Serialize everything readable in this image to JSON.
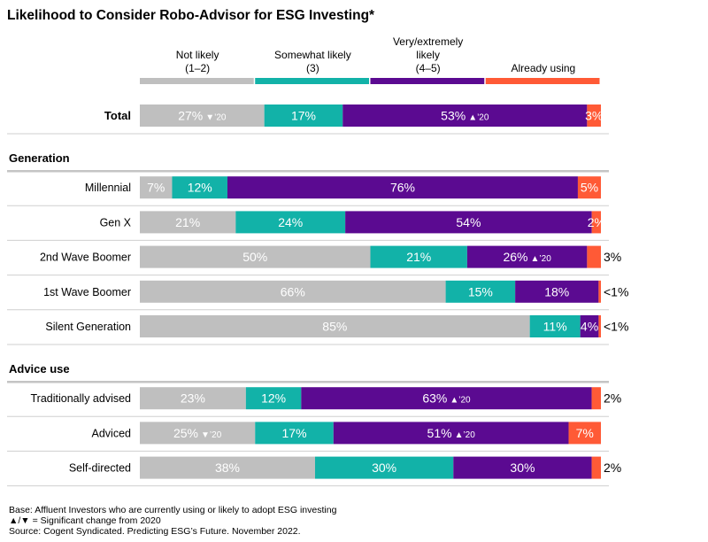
{
  "chart_data": {
    "type": "bar",
    "subtype": "stacked-horizontal-100",
    "title": "Likelihood to Consider Robo-Advisor for ESG Investing*",
    "series": [
      {
        "name": "Not likely\n(1–2)",
        "color": "#BFBFBF"
      },
      {
        "name": "Somewhat likely\n(3)",
        "color": "#12B2A8"
      },
      {
        "name": "Very/extremely\nlikely\n(4–5)",
        "color": "#5B0A91"
      },
      {
        "name": "Already using",
        "color": "#FF5A36"
      }
    ],
    "groups": [
      {
        "title": "",
        "rows": [
          {
            "label": "Total",
            "bold": true,
            "values": [
              27,
              17,
              53,
              3
            ],
            "labels": [
              "27%",
              "17%",
              "53%",
              "3%"
            ],
            "sig": [
              "down",
              "",
              "up",
              ""
            ],
            "outside": ""
          }
        ]
      },
      {
        "title": "Generation",
        "rows": [
          {
            "label": "Millennial",
            "values": [
              7,
              12,
              76,
              5
            ],
            "labels": [
              "7%",
              "12%",
              "76%",
              "5%"
            ],
            "sig": [
              "",
              "",
              "",
              ""
            ],
            "outside": ""
          },
          {
            "label": "Gen X",
            "values": [
              21,
              24,
              54,
              2
            ],
            "labels": [
              "21%",
              "24%",
              "54%",
              "2%"
            ],
            "sig": [
              "",
              "",
              "",
              ""
            ],
            "outside": ""
          },
          {
            "label": "2nd Wave Boomer",
            "values": [
              50,
              21,
              26,
              3
            ],
            "labels": [
              "50%",
              "21%",
              "26%",
              ""
            ],
            "sig": [
              "",
              "",
              "up",
              ""
            ],
            "outside": "3%"
          },
          {
            "label": "1st Wave Boomer",
            "values": [
              66,
              15,
              18,
              0.5
            ],
            "labels": [
              "66%",
              "15%",
              "18%",
              ""
            ],
            "sig": [
              "",
              "",
              "",
              ""
            ],
            "outside": "<1%"
          },
          {
            "label": "Silent Generation",
            "values": [
              85,
              11,
              4,
              0.5
            ],
            "labels": [
              "85%",
              "11%",
              "4%",
              ""
            ],
            "sig": [
              "",
              "",
              "",
              ""
            ],
            "outside": "<1%"
          }
        ]
      },
      {
        "title": "Advice use",
        "rows": [
          {
            "label": "Traditionally advised",
            "values": [
              23,
              12,
              63,
              2
            ],
            "labels": [
              "23%",
              "12%",
              "63%",
              ""
            ],
            "sig": [
              "",
              "",
              "up",
              ""
            ],
            "outside": "2%"
          },
          {
            "label": "Adviced",
            "values": [
              25,
              17,
              51,
              7
            ],
            "labels": [
              "25%",
              "17%",
              "51%",
              "7%"
            ],
            "sig": [
              "down",
              "",
              "up",
              ""
            ],
            "outside": ""
          },
          {
            "label": "Self-directed",
            "values": [
              38,
              30,
              30,
              2
            ],
            "labels": [
              "38%",
              "30%",
              "30%",
              ""
            ],
            "sig": [
              "",
              "",
              "",
              ""
            ],
            "outside": "2%"
          }
        ]
      }
    ],
    "sig_suffix": "’20",
    "sig_up": "▲",
    "sig_down": "▼"
  },
  "notes": {
    "base": "Base: Affluent Investors who are currently using or likely to adopt ESG investing",
    "significance": "▲/▼ = Significant change from 2020",
    "source": "Source: Cogent Syndicated. Predicting ESG’s Future. November 2022."
  }
}
